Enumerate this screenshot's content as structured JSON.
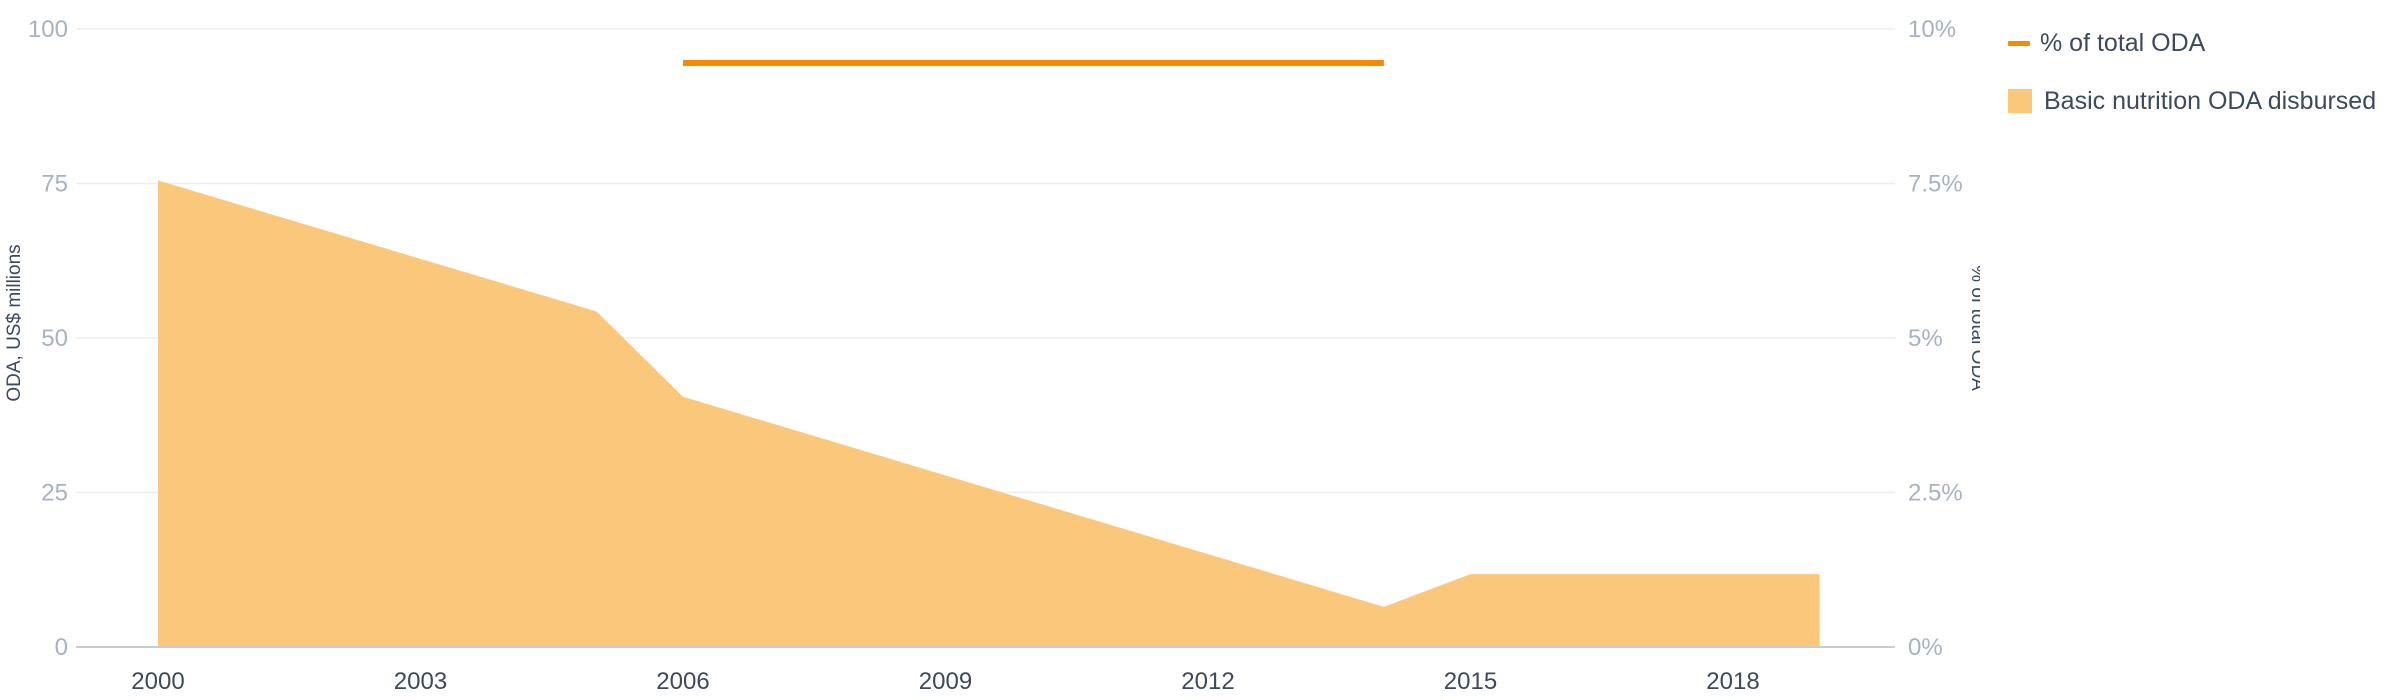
{
  "chart_data": {
    "type": "area",
    "x_labels": [
      "2000",
      "2003",
      "2006",
      "2009",
      "2012",
      "2015",
      "2018"
    ],
    "left_axis": {
      "label": "ODA, US$ millions",
      "ticks": [
        "0",
        "25",
        "50",
        "75",
        "100"
      ],
      "ylim": [
        0,
        100
      ]
    },
    "right_axis": {
      "label": "% of total ODA",
      "ticks": [
        "0%",
        "2.5%",
        "5%",
        "7.5%",
        "10%"
      ],
      "ylim": [
        0,
        10
      ]
    },
    "grid": true,
    "legend_position": "top-right",
    "series": [
      {
        "name": "% of total ODA",
        "type": "line",
        "axis": "right",
        "color": "#f28c00",
        "points": [
          {
            "slot": 2,
            "y": 9.45
          },
          {
            "slot": 4.67,
            "y": 9.45
          }
        ]
      },
      {
        "name": "Basic nutrition ODA disbursed",
        "type": "area",
        "axis": "left",
        "color": "#fbc87b",
        "points": [
          {
            "slot": 0,
            "y": 75.5
          },
          {
            "slot": 1.67,
            "y": 54.3
          },
          {
            "slot": 2,
            "y": 40.5
          },
          {
            "slot": 4.67,
            "y": 6.5
          },
          {
            "slot": 5,
            "y": 11.8
          },
          {
            "slot": 6.33,
            "y": 11.8
          }
        ]
      }
    ]
  }
}
